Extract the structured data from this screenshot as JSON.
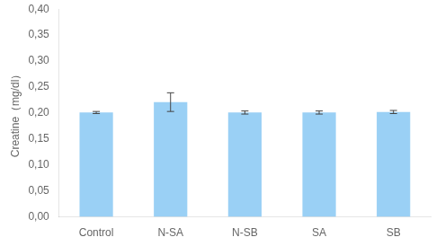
{
  "chart_data": {
    "type": "bar",
    "categories": [
      "Control",
      "N-SA",
      "N-SB",
      "SA",
      "SB"
    ],
    "values": [
      0.201,
      0.221,
      0.201,
      0.201,
      0.202
    ],
    "errors": [
      0.002,
      0.018,
      0.003,
      0.003,
      0.003
    ],
    "ylabel": "Creatine（mg/dl）",
    "ylim": [
      0.0,
      0.4
    ],
    "yticks": [
      {
        "value": 0.0,
        "label": "0,00"
      },
      {
        "value": 0.05,
        "label": "0,05"
      },
      {
        "value": 0.1,
        "label": "0,10"
      },
      {
        "value": 0.15,
        "label": "0,15"
      },
      {
        "value": 0.2,
        "label": "0,20"
      },
      {
        "value": 0.25,
        "label": "0,25"
      },
      {
        "value": 0.3,
        "label": "0,30"
      },
      {
        "value": 0.35,
        "label": "0,35"
      },
      {
        "value": 0.4,
        "label": "0,40"
      }
    ],
    "grid": false
  }
}
